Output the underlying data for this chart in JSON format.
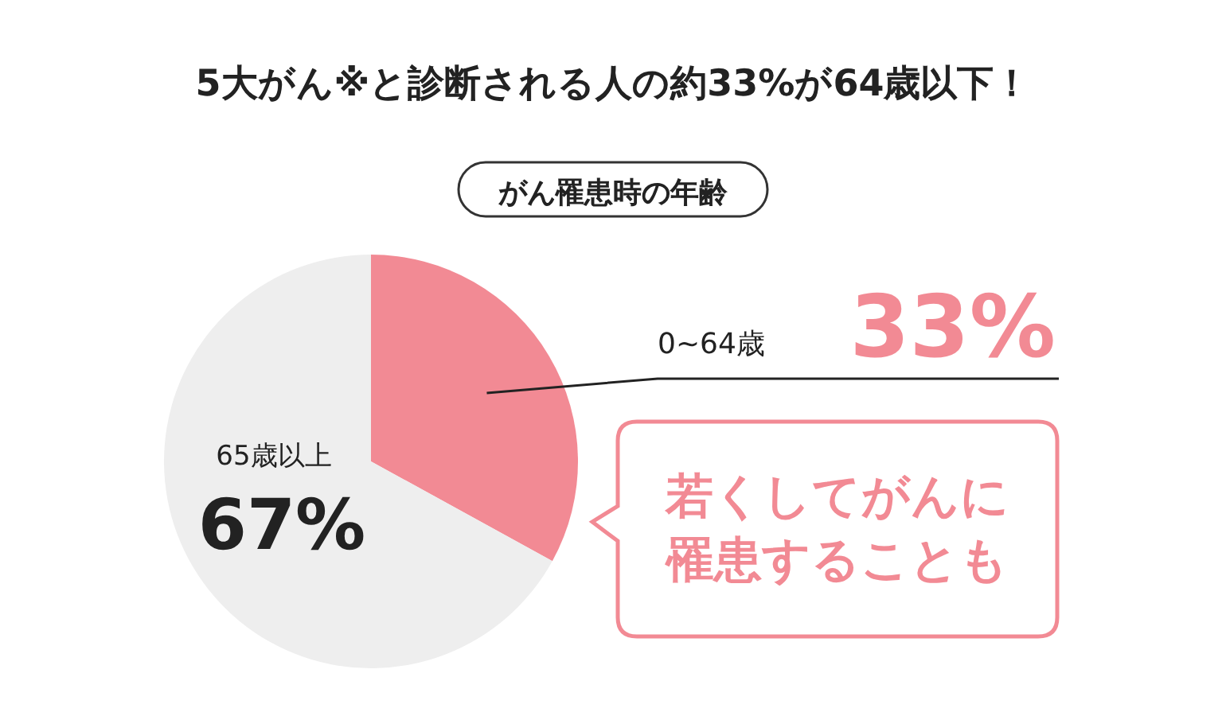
{
  "chart_data": {
    "type": "pie",
    "title": "5大がん※と診断される人の約33%が64歳以下！",
    "subtitle": "がん罹患時の年齢",
    "categories": [
      "0~64歳",
      "65歳以上"
    ],
    "values": [
      33,
      67
    ],
    "colors": [
      "#f28a94",
      "#eeeeee"
    ],
    "value_labels": [
      "33%",
      "67%"
    ],
    "annotations": [
      "若くしてがんに罹患することも"
    ]
  }
}
